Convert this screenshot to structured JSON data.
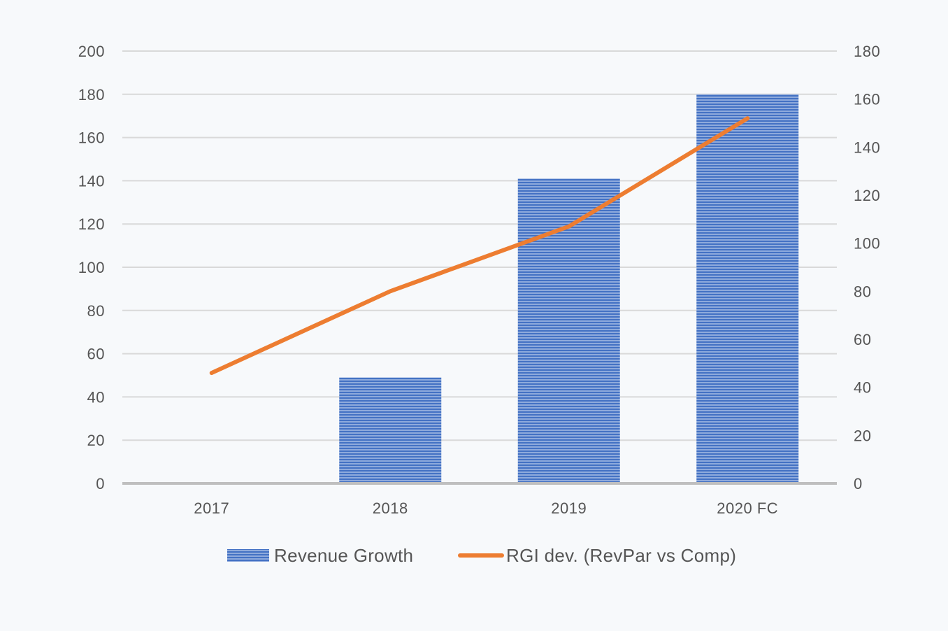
{
  "chart_data": {
    "type": "bar",
    "categories": [
      "2017",
      "2018",
      "2019",
      "2020 FC"
    ],
    "series": [
      {
        "name": "Revenue Growth",
        "kind": "bar",
        "axis": "left",
        "color": "#4472c4",
        "values": [
          0,
          49,
          141,
          180
        ]
      },
      {
        "name": "RGI dev. (RevPar vs Comp)",
        "kind": "line",
        "axis": "right",
        "color": "#ed7d31",
        "values": [
          46,
          80,
          107,
          152
        ]
      }
    ],
    "y_left": {
      "ylim": [
        0,
        200
      ],
      "ticks": [
        "0",
        "20",
        "40",
        "60",
        "80",
        "100",
        "120",
        "140",
        "160",
        "180",
        "200"
      ]
    },
    "y_right": {
      "ylim": [
        0,
        180
      ],
      "ticks": [
        "0",
        "20",
        "40",
        "60",
        "80",
        "100",
        "120",
        "140",
        "160",
        "180"
      ]
    },
    "grid": true,
    "legend_position": "bottom"
  }
}
